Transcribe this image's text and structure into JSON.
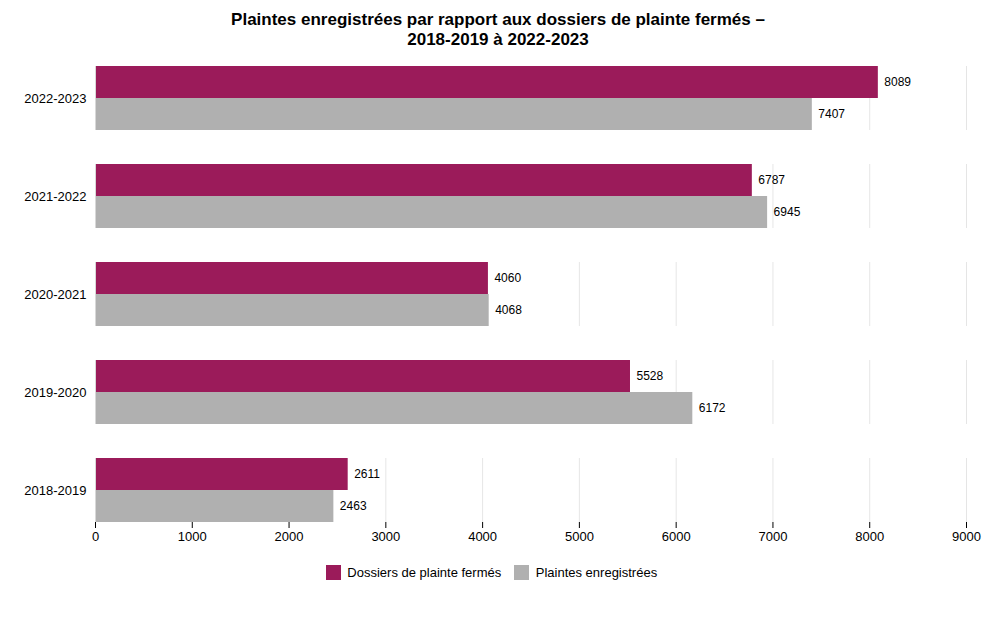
{
  "chart_data": {
    "type": "bar",
    "orientation": "horizontal",
    "title": "Plaintes enregistrées par rapport aux dossiers de plainte fermés –\n2018-2019 à 2022-2023",
    "categories": [
      "2018-2019",
      "2019-2020",
      "2020-2021",
      "2021-2022",
      "2022-2023"
    ],
    "series": [
      {
        "name": "Dossiers de plainte fermés",
        "color": "#9B1B5A",
        "values": [
          2611,
          5528,
          4060,
          6787,
          8089
        ]
      },
      {
        "name": "Plaintes enregistrées",
        "color": "#B0B0B0",
        "values": [
          2463,
          6172,
          4068,
          6945,
          7407
        ]
      }
    ],
    "xlim": [
      0,
      9000
    ],
    "xticks": [
      0,
      1000,
      2000,
      3000,
      4000,
      5000,
      6000,
      7000,
      8000,
      9000
    ],
    "grid": true,
    "legend": "bottom",
    "data_labels": true
  }
}
